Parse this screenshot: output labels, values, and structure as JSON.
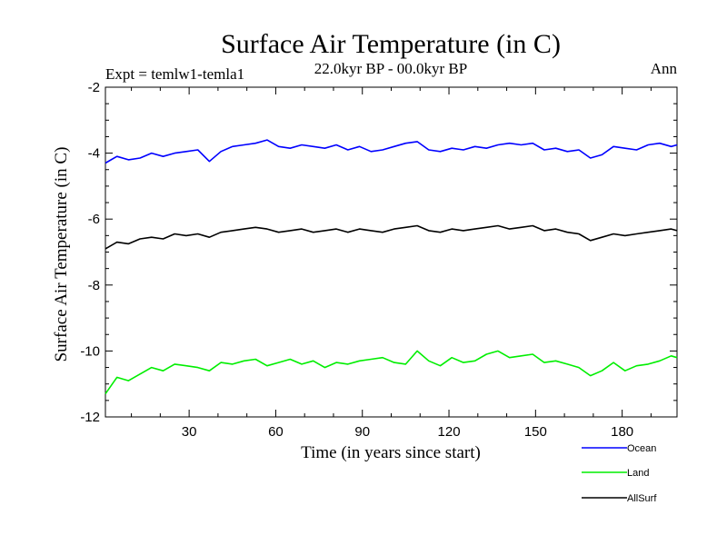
{
  "chart_data": {
    "type": "line",
    "title": "Surface Air Temperature (in C)",
    "subtitle": "22.0kyr BP - 00.0kyr BP",
    "left_label": "Expt = temlw1-temla1",
    "right_label": "Ann",
    "xlabel": "Time (in years since start)",
    "ylabel": "Surface Air Temperature (in C)",
    "xlim": [
      1,
      199
    ],
    "ylim": [
      -12,
      -2
    ],
    "xticks": [
      30,
      60,
      90,
      120,
      150,
      180
    ],
    "yticks": [
      -12,
      -10,
      -8,
      -6,
      -4,
      -2
    ],
    "legend_position": "bottom-right, outside plot",
    "series": [
      {
        "name": "Ocean",
        "color": "#0000ff",
        "x": [
          1,
          5,
          9,
          13,
          17,
          21,
          25,
          29,
          33,
          37,
          41,
          45,
          49,
          53,
          57,
          61,
          65,
          69,
          73,
          77,
          81,
          85,
          89,
          93,
          97,
          101,
          105,
          109,
          113,
          117,
          121,
          125,
          129,
          133,
          137,
          141,
          145,
          149,
          153,
          157,
          161,
          165,
          169,
          173,
          177,
          181,
          185,
          189,
          193,
          197,
          199
        ],
        "values": [
          -4.3,
          -4.1,
          -4.2,
          -4.15,
          -4.0,
          -4.1,
          -4.0,
          -3.95,
          -3.9,
          -4.25,
          -3.95,
          -3.8,
          -3.75,
          -3.7,
          -3.6,
          -3.8,
          -3.85,
          -3.75,
          -3.8,
          -3.85,
          -3.75,
          -3.9,
          -3.8,
          -3.95,
          -3.9,
          -3.8,
          -3.7,
          -3.65,
          -3.9,
          -3.95,
          -3.85,
          -3.9,
          -3.8,
          -3.85,
          -3.75,
          -3.7,
          -3.75,
          -3.7,
          -3.9,
          -3.85,
          -3.95,
          -3.9,
          -4.15,
          -4.05,
          -3.8,
          -3.85,
          -3.9,
          -3.75,
          -3.7,
          -3.8,
          -3.75
        ]
      },
      {
        "name": "Land",
        "color": "#00ee00",
        "x": [
          1,
          5,
          9,
          13,
          17,
          21,
          25,
          29,
          33,
          37,
          41,
          45,
          49,
          53,
          57,
          61,
          65,
          69,
          73,
          77,
          81,
          85,
          89,
          93,
          97,
          101,
          105,
          109,
          113,
          117,
          121,
          125,
          129,
          133,
          137,
          141,
          145,
          149,
          153,
          157,
          161,
          165,
          169,
          173,
          177,
          181,
          185,
          189,
          193,
          197,
          199
        ],
        "values": [
          -11.3,
          -10.8,
          -10.9,
          -10.7,
          -10.5,
          -10.6,
          -10.4,
          -10.45,
          -10.5,
          -10.6,
          -10.35,
          -10.4,
          -10.3,
          -10.25,
          -10.45,
          -10.35,
          -10.25,
          -10.4,
          -10.3,
          -10.5,
          -10.35,
          -10.4,
          -10.3,
          -10.25,
          -10.2,
          -10.35,
          -10.4,
          -10.0,
          -10.3,
          -10.45,
          -10.2,
          -10.35,
          -10.3,
          -10.1,
          -10.0,
          -10.2,
          -10.15,
          -10.1,
          -10.35,
          -10.3,
          -10.4,
          -10.5,
          -10.75,
          -10.6,
          -10.35,
          -10.6,
          -10.45,
          -10.4,
          -10.3,
          -10.15,
          -10.2
        ]
      },
      {
        "name": "AllSurf",
        "color": "#000000",
        "x": [
          1,
          5,
          9,
          13,
          17,
          21,
          25,
          29,
          33,
          37,
          41,
          45,
          49,
          53,
          57,
          61,
          65,
          69,
          73,
          77,
          81,
          85,
          89,
          93,
          97,
          101,
          105,
          109,
          113,
          117,
          121,
          125,
          129,
          133,
          137,
          141,
          145,
          149,
          153,
          157,
          161,
          165,
          169,
          173,
          177,
          181,
          185,
          189,
          193,
          197,
          199
        ],
        "values": [
          -6.9,
          -6.7,
          -6.75,
          -6.6,
          -6.55,
          -6.6,
          -6.45,
          -6.5,
          -6.45,
          -6.55,
          -6.4,
          -6.35,
          -6.3,
          -6.25,
          -6.3,
          -6.4,
          -6.35,
          -6.3,
          -6.4,
          -6.35,
          -6.3,
          -6.4,
          -6.3,
          -6.35,
          -6.4,
          -6.3,
          -6.25,
          -6.2,
          -6.35,
          -6.4,
          -6.3,
          -6.35,
          -6.3,
          -6.25,
          -6.2,
          -6.3,
          -6.25,
          -6.2,
          -6.35,
          -6.3,
          -6.4,
          -6.45,
          -6.65,
          -6.55,
          -6.45,
          -6.5,
          -6.45,
          -6.4,
          -6.35,
          -6.3,
          -6.35
        ]
      }
    ]
  }
}
